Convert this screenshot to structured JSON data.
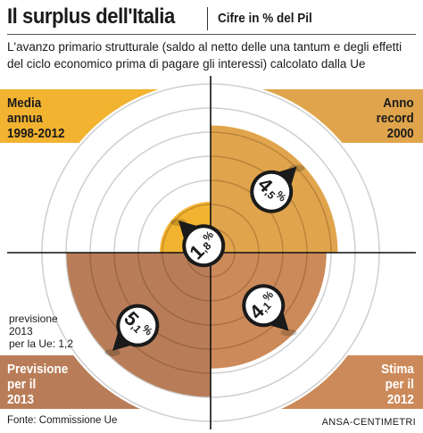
{
  "header": {
    "title": "Il surplus dell'Italia",
    "unit": "Cifre in % del Pil",
    "description": "L'avanzo primario strutturale (saldo al netto delle una tantum e degli effetti del ciclo economico prima di pagare gli interessi) calcolato dalla Ue"
  },
  "quadrants": {
    "top_left": {
      "lines": [
        "Media",
        "annua",
        "1998-2012"
      ]
    },
    "top_right": {
      "lines": [
        "Anno",
        "record",
        "2000"
      ]
    },
    "bottom_right": {
      "lines": [
        "Stima",
        "per il",
        "2012"
      ]
    },
    "bottom_left": {
      "lines": [
        "Previsione",
        "per il",
        "2013"
      ]
    }
  },
  "forecast_note": {
    "lines": [
      "previsione",
      "2013",
      "per la Ue: 1,2"
    ]
  },
  "footer": {
    "source": "Fonte: Commissione Ue",
    "credit": "ANSA-CENTIMETRI"
  },
  "chart_data": {
    "type": "radial-bar",
    "title": "Il surplus dell'Italia",
    "unit": "Cifre in % del Pil",
    "scale_max": 6,
    "categories": [
      "Media annua 1998-2012",
      "Anno record 2000",
      "Stima per il 2012",
      "Previsione per il 2013"
    ],
    "values": [
      1.8,
      4.5,
      4.1,
      5.1
    ],
    "value_labels": [
      {
        "int": "1",
        "dec": ",8",
        "pct": "%"
      },
      {
        "int": "4",
        "dec": ",5",
        "pct": "%"
      },
      {
        "int": "4",
        "dec": ",1",
        "pct": "%"
      },
      {
        "int": "5",
        "dec": ",1",
        "pct": "%"
      }
    ],
    "colors": [
      "#f2b330",
      "#e0a54c",
      "#cc8a5a",
      "#b87d58"
    ]
  }
}
